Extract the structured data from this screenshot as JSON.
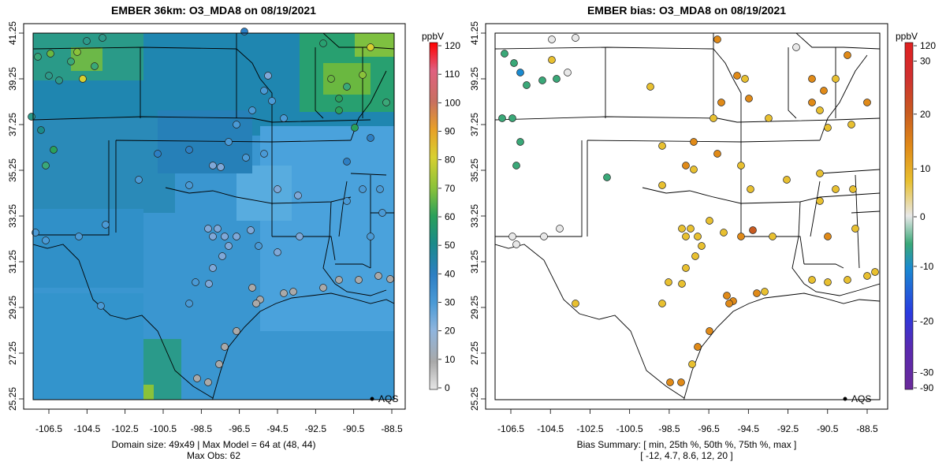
{
  "left_panel": {
    "title": "EMBER 36km: O3_MDA8 on 08/19/2021",
    "units": "ppbV",
    "colorbar_ticks": [
      "0",
      "10",
      "20",
      "30",
      "40",
      "50",
      "60",
      "70",
      "80",
      "90",
      "100",
      "110",
      "120"
    ],
    "legend_label": "AQS",
    "footer_line1": "Domain size: 49x49 | Max Model = 64 at (48, 44)",
    "footer_line2": "Max Obs: 62"
  },
  "right_panel": {
    "title": "EMBER bias: O3_MDA8 on 08/19/2021",
    "units": "ppbV",
    "colorbar_ticks": [
      "-90",
      "-30",
      "-20",
      "-10",
      "0",
      "10",
      "20",
      "30",
      "120"
    ],
    "legend_label": "AQS",
    "footer_line1": "Bias Summary: [ min, 25th %, 50th %, 75th %, max ]",
    "footer_line2": "[ -12,   4.7,   8.6,   12,   20 ]"
  },
  "axes": {
    "lon_ticks": [
      "-106.5",
      "-104.5",
      "-102.5",
      "-100.5",
      "-98.5",
      "-96.5",
      "-94.5",
      "-92.5",
      "-90.5",
      "-88.5"
    ],
    "lat_ticks": [
      "25.25",
      "27.25",
      "29.25",
      "31.25",
      "33.25",
      "35.25",
      "37.25",
      "39.25",
      "41.25"
    ]
  },
  "colors": {
    "ozone_scale": [
      "#e6e6e6",
      "#a9a9a9",
      "#7fa8d8",
      "#4a9ad6",
      "#2d7fc4",
      "#1a8a8a",
      "#2aa05a",
      "#8ac23a",
      "#d8d030",
      "#e8a028",
      "#e07020",
      "#e06080",
      "#ff0000"
    ],
    "bias_scale": [
      "#6a2a9a",
      "#2a3ae0",
      "#1a8ad0",
      "#3aa878",
      "#e8e8e8",
      "#e8c030",
      "#e08a18",
      "#c85a20",
      "#e02020"
    ],
    "background_field_main": "#3a96d0",
    "background_field_north": "#1f86b0"
  }
}
